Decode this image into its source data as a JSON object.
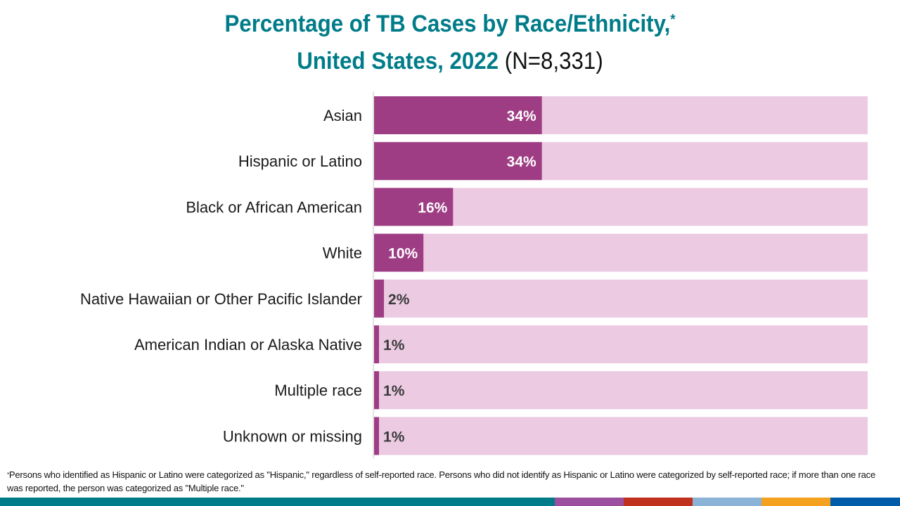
{
  "title": {
    "line1": "Percentage of TB Cases by Race/Ethnicity,",
    "asterisk": "*",
    "line2": "United States, 2022",
    "n_label": "(N=8,331)"
  },
  "chart_data": {
    "type": "bar",
    "orientation": "horizontal",
    "title": "Percentage of TB Cases by Race/Ethnicity, United States, 2022 (N=8,331)",
    "categories": [
      "Asian",
      "Hispanic or Latino",
      "Black or African American",
      "White",
      "Native Hawaiian or Other Pacific Islander",
      "American Indian or Alaska Native",
      "Multiple race",
      "Unknown or missing"
    ],
    "values": [
      34,
      34,
      16,
      10,
      2,
      1,
      1,
      1
    ],
    "data_labels": [
      "34%",
      "34%",
      "16%",
      "10%",
      "2%",
      "1%",
      "1%",
      "1%"
    ],
    "xlim": [
      0,
      100
    ],
    "xlabel": "",
    "ylabel": "",
    "grid": false,
    "legend": "none",
    "colors": {
      "bar": "#9e3d83",
      "track": "#ebcae2",
      "label_inside": "#ffffff",
      "label_outside": "#3a3a3a"
    }
  },
  "footnote": {
    "marker": "*",
    "text": "Persons who identified as Hispanic or Latino were categorized as \"Hispanic,\" regardless of self-reported race. Persons who did not identify as Hispanic or Latino were categorized by self-reported race; if more than one race was reported, the person was categorized as \"Multiple race.\""
  },
  "brand_stripe": [
    "#007c89",
    "#9b4f9e",
    "#c0311d",
    "#8ab3d7",
    "#f4a11f",
    "#005ca9"
  ]
}
